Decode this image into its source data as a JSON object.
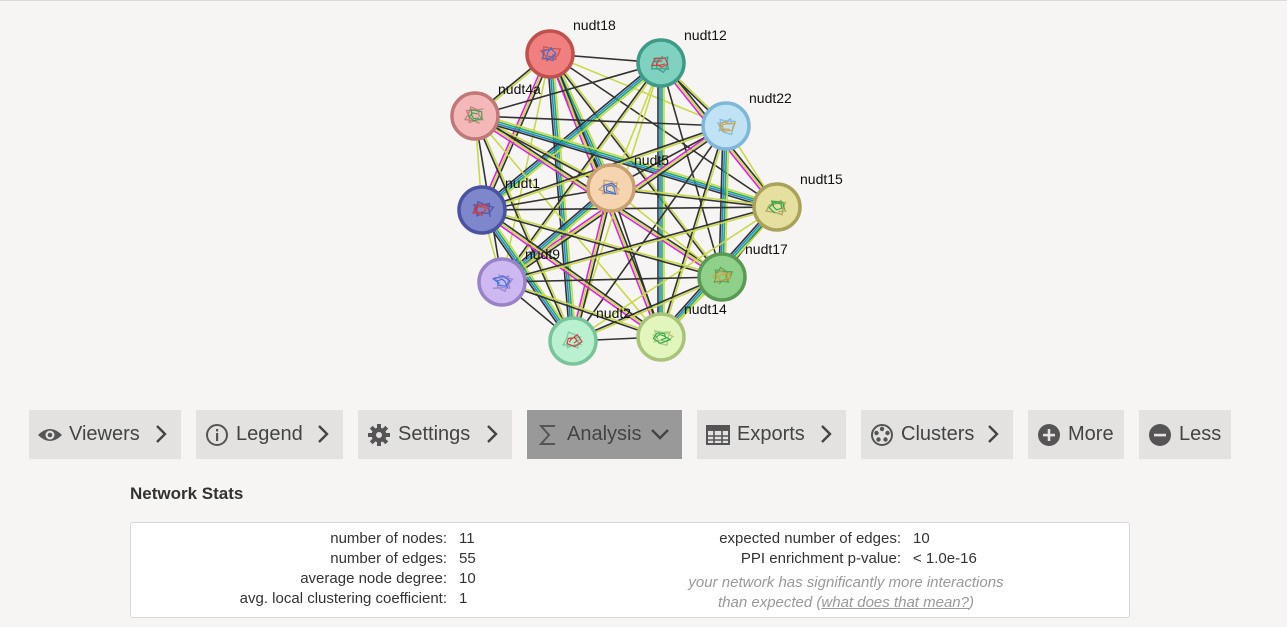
{
  "network": {
    "nodes": [
      {
        "id": "nudt18",
        "label": "nudt18",
        "color": "#f08080",
        "border": "#c0504d"
      },
      {
        "id": "nudt12",
        "label": "nudt12",
        "color": "#7fd1c0",
        "border": "#3f9a88"
      },
      {
        "id": "nudt4a",
        "label": "nudt4a",
        "color": "#f4b8b8",
        "border": "#c07878"
      },
      {
        "id": "nudt22",
        "label": "nudt22",
        "color": "#bfe3f5",
        "border": "#7fb7d8"
      },
      {
        "id": "nudt5",
        "label": "nudt5",
        "color": "#f7d4b0",
        "border": "#c9a072"
      },
      {
        "id": "nudt1",
        "label": "nudt1",
        "color": "#7e86cc",
        "border": "#4a53a0"
      },
      {
        "id": "nudt15",
        "label": "nudt15",
        "color": "#e6e0a0",
        "border": "#aaa25a"
      },
      {
        "id": "nudt17",
        "label": "nudt17",
        "color": "#8fd08a",
        "border": "#5a9a55"
      },
      {
        "id": "nudt9",
        "label": "nudt9",
        "color": "#cdb8f2",
        "border": "#9a82c8"
      },
      {
        "id": "nudt2",
        "label": "nudt2",
        "color": "#b8f0d0",
        "border": "#7ac49a"
      },
      {
        "id": "nudt14",
        "label": "nudt14",
        "color": "#e2f5bc",
        "border": "#a8c47a"
      }
    ],
    "edge_colors": [
      "#333333",
      "#c8d84a",
      "#dd22dd",
      "#22aa66",
      "#2288cc"
    ]
  },
  "toolbar": {
    "buttons": [
      {
        "label": "Viewers",
        "icon": "eye-icon",
        "chevron": "right"
      },
      {
        "label": "Legend",
        "icon": "info-icon",
        "chevron": "right"
      },
      {
        "label": "Settings",
        "icon": "gear-icon",
        "chevron": "right"
      },
      {
        "label": "Analysis",
        "icon": "sigma-icon",
        "chevron": "down",
        "active": true
      },
      {
        "label": "Exports",
        "icon": "table-icon",
        "chevron": "right"
      },
      {
        "label": "Clusters",
        "icon": "clusters-icon",
        "chevron": "right"
      },
      {
        "label": "More",
        "icon": "plus-circle-icon"
      },
      {
        "label": "Less",
        "icon": "minus-circle-icon"
      }
    ]
  },
  "stats": {
    "title": "Network Stats",
    "left": [
      {
        "label": "number of nodes:",
        "value": "11"
      },
      {
        "label": "number of edges:",
        "value": "55"
      },
      {
        "label": "average node degree:",
        "value": "10"
      },
      {
        "label": "avg. local clustering coefficient:",
        "value": "1"
      }
    ],
    "right": [
      {
        "label": "expected number of edges:",
        "value": "10"
      },
      {
        "label": "PPI enrichment p-value:",
        "value": "< 1.0e-16"
      }
    ],
    "note_line1": "your network has significantly more interactions",
    "note_line2_prefix": "than expected (",
    "note_link": "what does that mean?",
    "note_line2_suffix": ")"
  }
}
